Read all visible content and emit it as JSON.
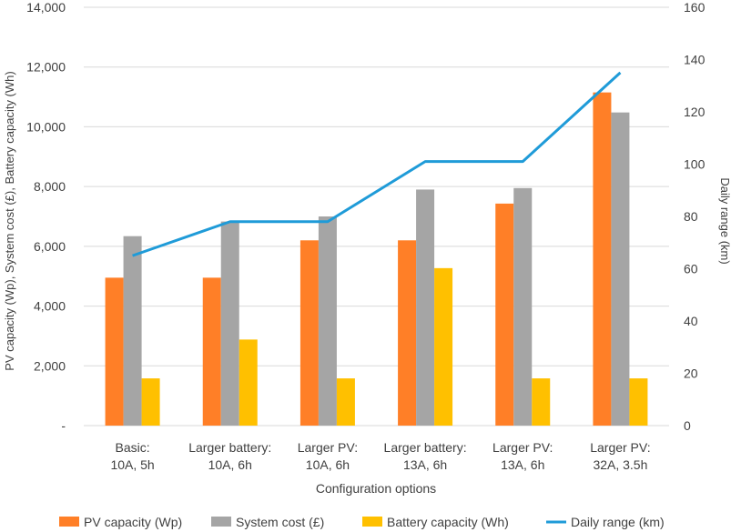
{
  "chart_data": {
    "type": "bar+line",
    "title": "",
    "xlabel": "Configuration options",
    "ylabel": "PV capacity (Wp), System cost (£), Battery capacity (Wh)",
    "y2label": "Daily range (km)",
    "categories": [
      [
        "Basic:",
        "10A, 5h"
      ],
      [
        "Larger battery:",
        "10A, 6h"
      ],
      [
        "Larger PV:",
        "10A, 6h"
      ],
      [
        "Larger battery:",
        "13A, 6h"
      ],
      [
        "Larger PV:",
        "13A, 6h"
      ],
      [
        "Larger PV:",
        "32A, 3.5h"
      ]
    ],
    "ylim": [
      0,
      14000
    ],
    "y2lim": [
      0,
      160
    ],
    "yticks": [
      0,
      2000,
      4000,
      6000,
      8000,
      10000,
      12000,
      14000
    ],
    "ytick_labels": [
      "-",
      "2,000",
      "4,000",
      "6,000",
      "8,000",
      "10,000",
      "12,000",
      "14,000"
    ],
    "y2ticks": [
      0,
      20,
      40,
      60,
      80,
      100,
      120,
      140,
      160
    ],
    "y2tick_labels": [
      "0",
      "20",
      "40",
      "60",
      "80",
      "100",
      "120",
      "140",
      "160"
    ],
    "bar_series": [
      {
        "name": "PV capacity (Wp)",
        "color": "#FF7F27",
        "values": [
          4950,
          4950,
          6200,
          6200,
          7430,
          11150
        ]
      },
      {
        "name": "System cost (£)",
        "color": "#A5A5A5",
        "values": [
          6340,
          6830,
          7000,
          7900,
          7950,
          10480
        ]
      },
      {
        "name": "Battery capacity (Wh)",
        "color": "#FFC000",
        "values": [
          1580,
          2880,
          1580,
          5270,
          1580,
          1580
        ]
      }
    ],
    "line_series": [
      {
        "name": "Daily range (km)",
        "color": "#1F9BD8",
        "axis": "right",
        "values": [
          65,
          78,
          78,
          101,
          101,
          135
        ]
      }
    ],
    "grid": true,
    "legend_position": "bottom"
  }
}
